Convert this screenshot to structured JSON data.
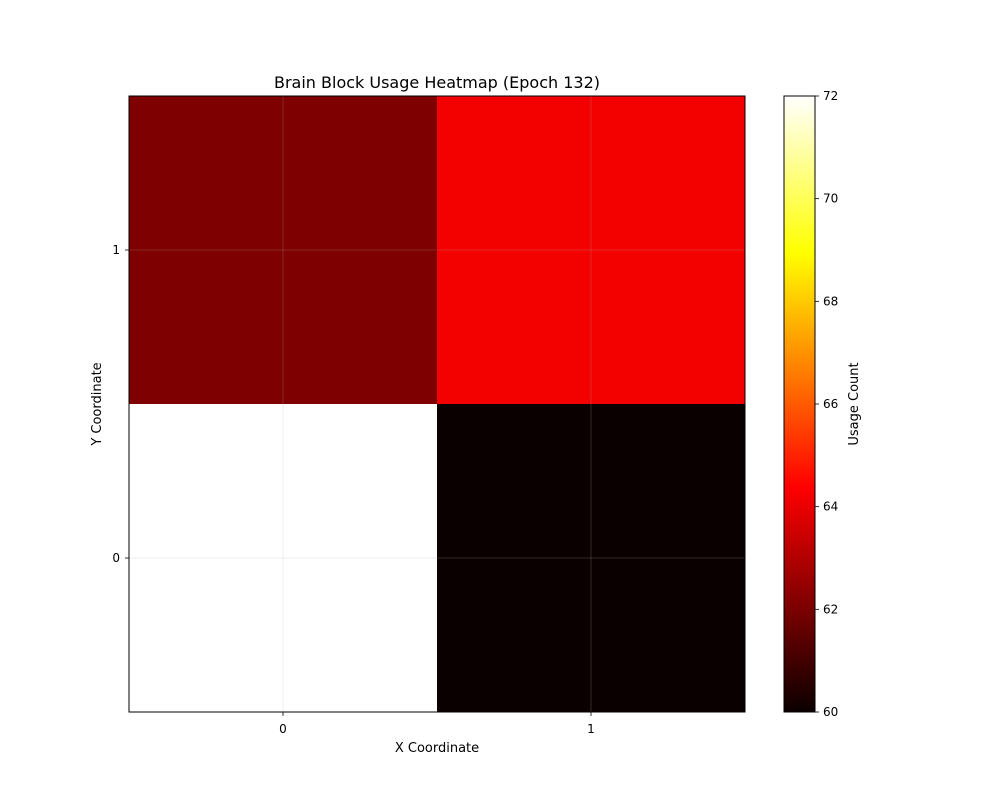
{
  "chart_data": {
    "type": "heatmap",
    "title": "Brain Block Usage Heatmap (Epoch 132)",
    "xlabel": "X Coordinate",
    "ylabel": "Y Coordinate",
    "x_categories": [
      "0",
      "1"
    ],
    "y_categories": [
      "0",
      "1"
    ],
    "cells": [
      {
        "x": 0,
        "y": 0,
        "value": 72
      },
      {
        "x": 1,
        "y": 0,
        "value": 60
      },
      {
        "x": 0,
        "y": 1,
        "value": 62
      },
      {
        "x": 1,
        "y": 1,
        "value": 64
      }
    ],
    "colorbar": {
      "label": "Usage Count",
      "min": 60,
      "max": 72,
      "ticks": [
        60,
        62,
        64,
        66,
        68,
        70,
        72
      ],
      "colormap": "hot"
    },
    "grid": true
  }
}
